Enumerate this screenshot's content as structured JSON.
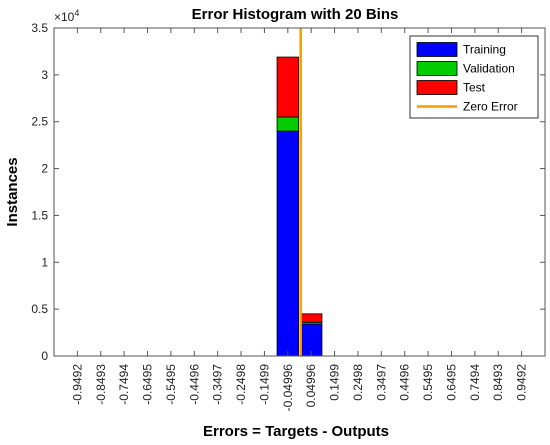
{
  "chart_data": {
    "type": "bar",
    "title": "Error Histogram with 20 Bins",
    "xlabel": "Errors = Targets - Outputs",
    "ylabel": "Instances",
    "y_multiplier": "×10",
    "y_multiplier_exponent": "4",
    "ylim": [
      0,
      35000
    ],
    "yticks": [
      0,
      5000,
      10000,
      15000,
      20000,
      25000,
      30000,
      35000
    ],
    "ytick_labels": [
      "0",
      "0.5",
      "1",
      "1.5",
      "2",
      "2.5",
      "3",
      "3.5"
    ],
    "categories": [
      "-0.9492",
      "-0.8493",
      "-0.7494",
      "-0.6495",
      "-0.5495",
      "-0.4496",
      "-0.3497",
      "-0.2498",
      "-0.1499",
      "-0.04996",
      "0.04996",
      "0.1499",
      "0.2498",
      "0.3497",
      "0.4496",
      "0.5495",
      "0.6495",
      "0.7494",
      "0.8493",
      "0.9492"
    ],
    "stacked": true,
    "series": [
      {
        "name": "Training",
        "color": "#0000ff",
        "values": [
          0,
          0,
          0,
          0,
          0,
          0,
          0,
          0,
          0,
          24000,
          3400,
          0,
          0,
          0,
          0,
          0,
          0,
          0,
          0,
          0
        ]
      },
      {
        "name": "Validation",
        "color": "#00cc00",
        "values": [
          0,
          0,
          0,
          0,
          0,
          0,
          0,
          0,
          0,
          1500,
          200,
          0,
          0,
          0,
          0,
          0,
          0,
          0,
          0,
          0
        ]
      },
      {
        "name": "Test",
        "color": "#ff0000",
        "values": [
          0,
          0,
          0,
          0,
          0,
          0,
          0,
          0,
          0,
          6400,
          900,
          0,
          0,
          0,
          0,
          0,
          0,
          0,
          0,
          0
        ]
      }
    ],
    "zero_error": {
      "name": "Zero Error",
      "color": "#ff9900",
      "bin_index": 9.55
    },
    "legend_position": "top-right",
    "grid": false
  }
}
